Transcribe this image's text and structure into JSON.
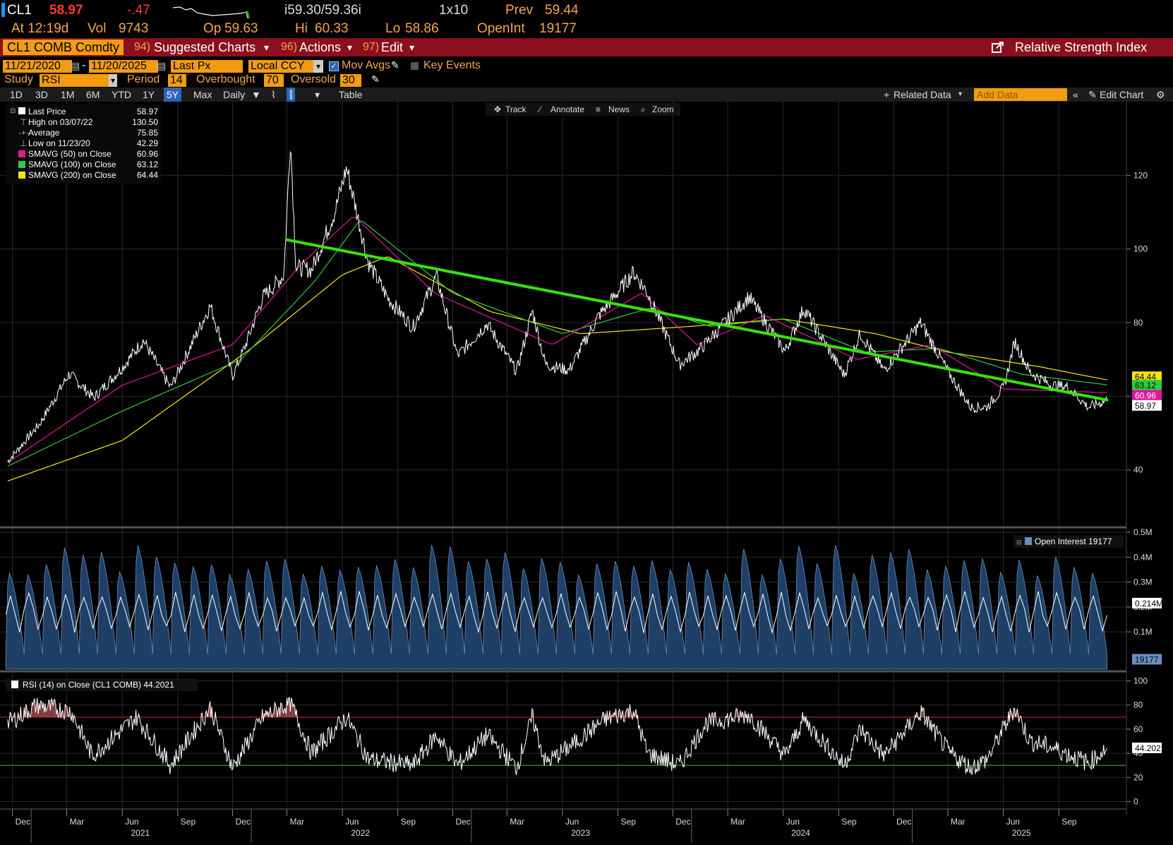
{
  "header": {
    "ticker": "CL1",
    "last": "58.97",
    "change": "-.47",
    "bid_ask": "i59.30/59.36i",
    "size": "1x10",
    "prev_label": "Prev",
    "prev": "59.44",
    "time": "At 12:19d",
    "vol_label": "Vol",
    "vol": "9743",
    "op_label": "Op",
    "op": "59.63",
    "hi_label": "Hi",
    "hi": "60.33",
    "lo_label": "Lo",
    "lo": "58.86",
    "oi_label": "OpenInt",
    "oi": "19177"
  },
  "menubar": {
    "security": "CL1 COMB Comdty",
    "suggested_num": "94)",
    "suggested": "Suggested Charts",
    "actions_num": "96)",
    "actions": "Actions",
    "edit_num": "97)",
    "edit": "Edit",
    "title": "Relative Strength Index"
  },
  "settings": {
    "start_date": "11/21/2020",
    "end_date": "11/20/2025",
    "field": "Last Px",
    "currency": "Local CCY",
    "mov_avgs": "Mov Avgs",
    "key_events": "Key Events",
    "study_label": "Study",
    "study": "RSI",
    "period_label": "Period",
    "period": "14",
    "overbought_label": "Overbought",
    "overbought": "70",
    "oversold_label": "Oversold",
    "oversold": "30"
  },
  "toolbar": {
    "ranges": [
      "1D",
      "3D",
      "1M",
      "6M",
      "YTD",
      "1Y",
      "5Y",
      "Max"
    ],
    "selected_range": "5Y",
    "frequency": "Daily",
    "table": "Table",
    "related_data": "Related Data",
    "add_data_placeholder": "Add Data",
    "edit_chart": "Edit Chart",
    "track": "Track",
    "annotate": "Annotate",
    "news": "News",
    "zoom": "Zoom"
  },
  "legend_price": [
    {
      "label": "Last Price",
      "value": "58.97",
      "color": "#ffffff"
    },
    {
      "label": "High on 03/07/22",
      "value": "130.50",
      "color": ""
    },
    {
      "label": "Average",
      "value": "75.85",
      "color": ""
    },
    {
      "label": "Low on 11/23/20",
      "value": "42.29",
      "color": ""
    },
    {
      "label": "SMAVG (50)  on Close",
      "value": "60.96",
      "color": "#e0159a"
    },
    {
      "label": "SMAVG (100)  on Close",
      "value": "63.12",
      "color": "#2ecc40"
    },
    {
      "label": "SMAVG (200)  on Close",
      "value": "64.44",
      "color": "#f5e60b"
    }
  ],
  "legend_oi": "Open Interest  19177",
  "legend_rsi": "RSI (14)  on Close (CL1 COMB)  44.2021",
  "price_tags": {
    "last": "58.97",
    "sma50": "60.96",
    "sma100": "63.12",
    "sma200": "64.44"
  },
  "oi_tags": {
    "current": "0.214M",
    "last": "19177"
  },
  "rsi_tag": "44.2021",
  "x_axis": {
    "months": [
      "Dec",
      "Mar",
      "Jun",
      "Sep",
      "Dec",
      "Mar",
      "Jun",
      "Sep",
      "Dec",
      "Mar",
      "Jun",
      "Sep",
      "Dec",
      "Mar",
      "Jun",
      "Sep",
      "Dec",
      "Mar",
      "Jun",
      "Sep"
    ],
    "years": [
      "2021",
      "2022",
      "2023",
      "2024",
      "2025"
    ]
  },
  "chart_data": [
    {
      "type": "line",
      "title": "",
      "ylim": [
        25,
        140
      ],
      "yticks": [
        40,
        60,
        80,
        100,
        120
      ],
      "grid": true,
      "series": [
        {
          "name": "Last Price",
          "color": "#ffffff",
          "x": [
            "2020-11-23",
            "2021-01-15",
            "2021-03-05",
            "2021-04-15",
            "2021-06-01",
            "2021-07-06",
            "2021-08-20",
            "2021-10-25",
            "2021-12-01",
            "2021-12-20",
            "2022-01-20",
            "2022-02-24",
            "2022-03-07",
            "2022-03-16",
            "2022-04-11",
            "2022-05-20",
            "2022-06-08",
            "2022-07-14",
            "2022-08-16",
            "2022-09-26",
            "2022-11-04",
            "2022-12-09",
            "2023-01-27",
            "2023-03-17",
            "2023-04-12",
            "2023-05-04",
            "2023-06-12",
            "2023-07-31",
            "2023-09-27",
            "2023-10-20",
            "2023-12-12",
            "2024-01-15",
            "2024-04-05",
            "2024-06-04",
            "2024-07-05",
            "2024-09-10",
            "2024-10-07",
            "2024-11-15",
            "2025-01-15",
            "2025-03-04",
            "2025-04-08",
            "2025-05-05",
            "2025-06-02",
            "2025-06-20",
            "2025-07-15",
            "2025-08-20",
            "2025-09-15",
            "2025-10-20",
            "2025-11-20"
          ],
          "y": [
            42.29,
            52.5,
            66.1,
            59.6,
            67.8,
            75.2,
            62.3,
            84.6,
            65.6,
            72.8,
            86.9,
            92.8,
            130.5,
            95.0,
            94.3,
            110.3,
            122.1,
            96.3,
            86.5,
            78.7,
            92.6,
            71.0,
            79.7,
            66.7,
            83.3,
            68.6,
            67.1,
            81.8,
            93.7,
            88.1,
            68.6,
            72.7,
            87.0,
            72.2,
            83.9,
            65.8,
            77.1,
            67.0,
            80.0,
            66.0,
            57.0,
            57.1,
            62.5,
            75.0,
            66.5,
            63.0,
            62.6,
            57.0,
            58.97
          ]
        },
        {
          "name": "SMAVG (50) on Close",
          "color": "#e0159a",
          "x": [
            "2020-11-23",
            "2021-06-01",
            "2021-12-01",
            "2022-03-25",
            "2022-06-20",
            "2022-11-01",
            "2023-05-15",
            "2023-10-10",
            "2024-01-10",
            "2024-05-01",
            "2024-10-01",
            "2025-02-01",
            "2025-06-01",
            "2025-11-20"
          ],
          "y": [
            42,
            63,
            74,
            96,
            109,
            88,
            74,
            88,
            74,
            82,
            70,
            74,
            62,
            60.96
          ]
        },
        {
          "name": "SMAVG (100) on Close",
          "color": "#2ecc40",
          "x": [
            "2020-11-23",
            "2021-06-01",
            "2021-12-15",
            "2022-04-15",
            "2022-07-01",
            "2022-12-01",
            "2023-06-01",
            "2023-10-25",
            "2024-02-01",
            "2024-06-01",
            "2024-10-15",
            "2025-02-15",
            "2025-07-01",
            "2025-11-20"
          ],
          "y": [
            41,
            56,
            70,
            91,
            108,
            88,
            77,
            84,
            79,
            81,
            72,
            73,
            66,
            63.12
          ]
        },
        {
          "name": "SMAVG (200) on Close",
          "color": "#f5e60b",
          "x": [
            "2020-11-23",
            "2021-06-01",
            "2022-01-01",
            "2022-06-01",
            "2022-08-15",
            "2023-02-01",
            "2023-07-01",
            "2024-01-01",
            "2024-06-01",
            "2024-11-01",
            "2025-03-01",
            "2025-08-01",
            "2025-11-20"
          ],
          "y": [
            37,
            48,
            73,
            93,
            98,
            83,
            77,
            79,
            81,
            77,
            72,
            68,
            64.44
          ]
        },
        {
          "name": "Trend line",
          "color": "#34e30b",
          "x": [
            "2022-03-01",
            "2025-11-20"
          ],
          "y": [
            102.5,
            59.0
          ]
        }
      ]
    },
    {
      "type": "area",
      "title": "",
      "ylim": [
        -0.05,
        0.5
      ],
      "yticks": [
        0.1,
        0.2,
        0.3,
        0.4,
        0.5
      ],
      "ytick_labels": [
        "0.1M",
        "0.2M",
        "0.3M",
        "0.4M",
        "0.5M"
      ],
      "series": [
        {
          "name": "Open Interest",
          "color": "#1e3f66",
          "description_of_cycle": "monthly roll sawtooth",
          "x": [
            "2020-11-23",
            "2025-11-20"
          ],
          "y_range": [
            0.0,
            0.45
          ],
          "last": 0.019177,
          "current_level": 0.214
        }
      ]
    },
    {
      "type": "line",
      "title": "",
      "ylim": [
        -5,
        105
      ],
      "yticks": [
        0,
        20,
        40,
        60,
        80,
        100
      ],
      "overbought": 70,
      "oversold": 30,
      "series": [
        {
          "name": "RSI (14) on Close",
          "color": "#ffffff",
          "x": [
            "2020-11-23",
            "2021-01-10",
            "2021-03-08",
            "2021-04-12",
            "2021-06-25",
            "2021-08-20",
            "2021-10-25",
            "2021-12-01",
            "2022-01-20",
            "2022-03-07",
            "2022-04-11",
            "2022-06-08",
            "2022-07-14",
            "2022-09-26",
            "2022-11-04",
            "2022-12-09",
            "2023-01-27",
            "2023-03-17",
            "2023-04-12",
            "2023-05-04",
            "2023-06-12",
            "2023-08-10",
            "2023-09-27",
            "2023-10-20",
            "2023-12-12",
            "2024-01-25",
            "2024-04-05",
            "2024-06-04",
            "2024-07-05",
            "2024-09-10",
            "2024-10-07",
            "2024-11-15",
            "2025-01-15",
            "2025-03-04",
            "2025-04-08",
            "2025-05-05",
            "2025-06-20",
            "2025-07-15",
            "2025-08-20",
            "2025-10-20",
            "2025-11-20"
          ],
          "y": [
            65,
            80,
            75,
            38,
            70,
            30,
            78,
            28,
            70,
            82,
            40,
            70,
            35,
            30,
            55,
            30,
            55,
            28,
            70,
            32,
            45,
            68,
            76,
            40,
            30,
            65,
            72,
            38,
            68,
            30,
            60,
            38,
            74,
            40,
            28,
            35,
            78,
            50,
            45,
            32,
            44.2
          ]
        }
      ]
    }
  ]
}
